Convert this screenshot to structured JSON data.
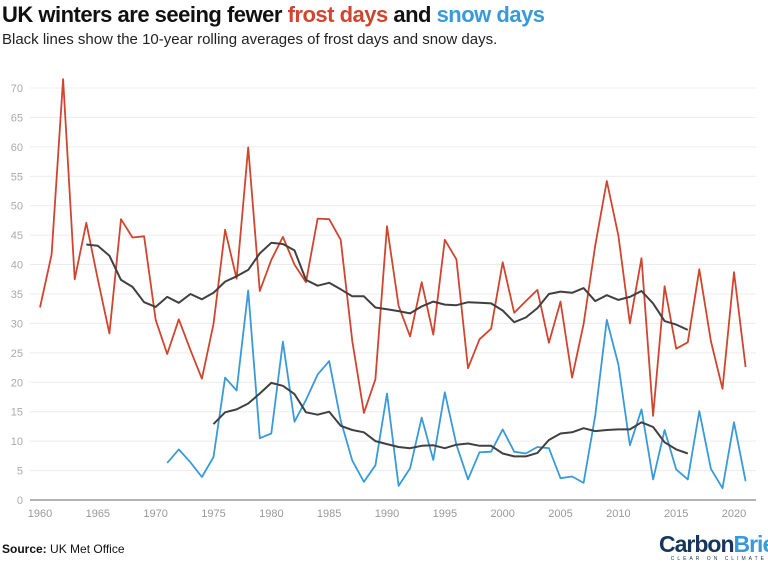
{
  "header": {
    "title_parts": [
      "UK winters are seeing fewer ",
      "frost days",
      " and ",
      "snow days"
    ],
    "subtitle": "Black lines show the 10-year rolling averages of frost days and snow days."
  },
  "footer": {
    "source_label": "Source:",
    "source_text": " UK Met Office",
    "logo_text": [
      "Carbon",
      "Brief"
    ],
    "logo_tagline": "CLEAR ON CLIMATE"
  },
  "colors": {
    "frost": "#d0452f",
    "snow": "#3a9ad9",
    "average": "#404040",
    "grid": "#ececec",
    "axis": "#999999",
    "logo_dark": "#16365c",
    "logo_light": "#3a9ad9"
  },
  "chart_data": {
    "type": "line",
    "title": "UK winters are seeing fewer frost days and snow days",
    "xlim": [
      1959,
      2023
    ],
    "ylim": [
      0,
      70
    ],
    "xticks": [
      1960,
      1965,
      1970,
      1975,
      1980,
      1985,
      1990,
      1995,
      2000,
      2005,
      2010,
      2015,
      2020
    ],
    "yticks": [
      0,
      5,
      10,
      15,
      20,
      25,
      30,
      35,
      40,
      45,
      50,
      55,
      60,
      65,
      70
    ],
    "grid": true,
    "series": [
      {
        "name": "frost days",
        "color": "#d0452f",
        "start": 1960,
        "values": [
          32.7,
          41.7,
          71.5,
          37.5,
          47.1,
          37.5,
          28.3,
          47.7,
          44.6,
          44.8,
          30.6,
          24.8,
          30.7,
          25.5,
          20.6,
          29.9,
          45.9,
          37.6,
          59.9,
          35.5,
          40.8,
          44.7,
          40.0,
          37.0,
          47.8,
          47.7,
          44.2,
          27.0,
          14.8,
          20.5,
          46.5,
          33.0,
          27.8,
          37.0,
          28.1,
          44.2,
          40.9,
          22.4,
          27.3,
          29.1,
          40.4,
          31.8,
          33.8,
          35.7,
          26.7,
          33.7,
          20.8,
          29.9,
          43.2,
          54.2,
          44.9,
          30.0,
          41.1,
          14.3,
          36.3,
          25.7,
          26.8,
          39.2,
          27.0,
          18.9,
          38.7,
          22.6
        ]
      },
      {
        "name": "snow days",
        "color": "#3a9ad9",
        "start": 1971,
        "values": [
          6.3,
          8.6,
          6.4,
          3.9,
          7.3,
          20.8,
          18.6,
          35.6,
          10.5,
          11.3,
          26.9,
          13.3,
          17.0,
          21.3,
          23.6,
          13.5,
          6.7,
          3.1,
          5.9,
          18.1,
          2.4,
          5.4,
          14.0,
          6.8,
          18.3,
          9.4,
          3.5,
          8.1,
          8.2,
          12.0,
          8.2,
          7.9,
          9.0,
          8.8,
          3.7,
          4.0,
          2.9,
          14.3,
          30.6,
          23.0,
          9.3,
          15.4,
          3.5,
          11.9,
          5.2,
          3.5,
          15.1,
          5.3,
          2.0,
          13.2,
          3.2
        ]
      },
      {
        "color": "#404040",
        "start": 1964,
        "values": [
          43.4,
          43.2,
          41.5,
          37.4,
          36.2,
          33.6,
          32.8,
          34.5,
          33.5,
          35.0,
          34.1,
          35.2,
          37.1,
          38.0,
          39.1,
          41.9,
          43.7,
          43.5,
          42.4,
          37.4,
          36.4,
          36.9,
          35.8,
          34.6,
          34.6,
          32.7,
          32.4,
          32.1,
          31.7,
          32.9,
          33.7,
          33.2,
          33.1,
          33.6,
          33.5,
          33.4,
          32.2,
          30.2,
          31.0,
          32.6,
          35.0,
          35.4,
          35.2,
          36.0,
          33.8,
          34.8,
          34.0,
          34.5,
          35.5,
          33.4,
          30.4,
          29.8,
          28.9
        ]
      },
      {
        "color": "#404040",
        "start": 1975,
        "values": [
          12.9,
          14.9,
          15.4,
          16.4,
          18.1,
          19.9,
          19.4,
          18.0,
          14.9,
          14.5,
          15.0,
          12.6,
          11.9,
          11.5,
          10.0,
          9.5,
          9.0,
          8.8,
          9.2,
          9.3,
          8.8,
          9.4,
          9.6,
          9.2,
          9.2,
          7.9,
          7.4,
          7.4,
          8.0,
          10.2,
          11.3,
          11.5,
          12.2,
          11.7,
          11.9,
          12.0,
          12.0,
          13.2,
          12.4,
          9.8,
          8.6,
          7.9
        ]
      }
    ]
  }
}
